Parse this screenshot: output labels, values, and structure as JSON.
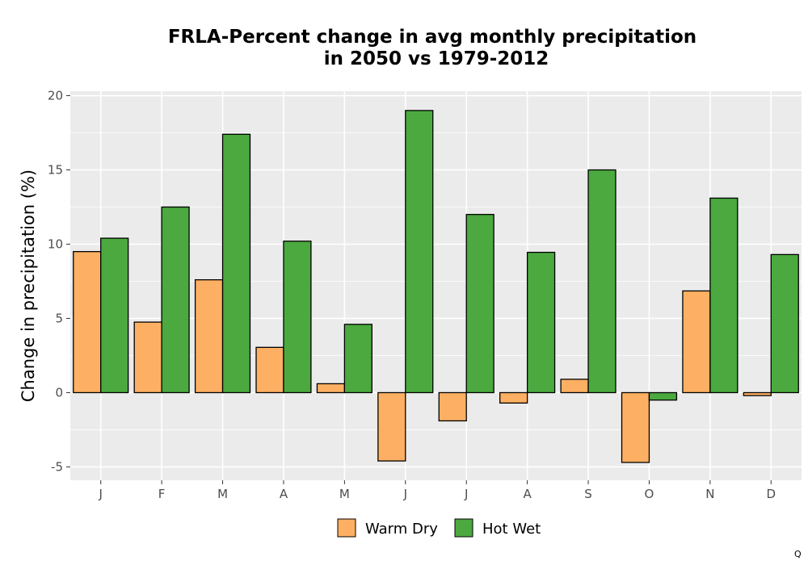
{
  "chart_data": {
    "type": "bar",
    "title": "FRLA-Percent change in avg monthly precipitation",
    "subtitle": "in 2050 vs 1979-2012",
    "xlabel": "",
    "ylabel": "Change in precipitation (%)",
    "categories": [
      "J",
      "F",
      "M",
      "A",
      "M",
      "J",
      "J",
      "A",
      "S",
      "O",
      "N",
      "D"
    ],
    "series": [
      {
        "name": "Warm Dry",
        "color": "#FDB063",
        "values": [
          9.5,
          4.75,
          7.6,
          3.05,
          0.6,
          -4.6,
          -1.9,
          -0.7,
          0.9,
          -4.7,
          6.85,
          -0.2
        ]
      },
      {
        "name": "Hot Wet",
        "color": "#4BA93F",
        "values": [
          10.4,
          12.5,
          17.4,
          10.2,
          4.6,
          19.0,
          12.0,
          9.45,
          15.0,
          -0.5,
          13.1,
          9.3
        ]
      }
    ],
    "ylim": [
      -5.9,
      20.3
    ],
    "yticks": [
      -5,
      0,
      5,
      10,
      15,
      20
    ],
    "ytick_labels": [
      "-5",
      "0",
      "5",
      "10",
      "15",
      "20"
    ],
    "grid": true,
    "legend_position": "bottom",
    "panel_background": "#EBEBEB",
    "grid_color": "#FFFFFF"
  },
  "corner_mark": "Q"
}
